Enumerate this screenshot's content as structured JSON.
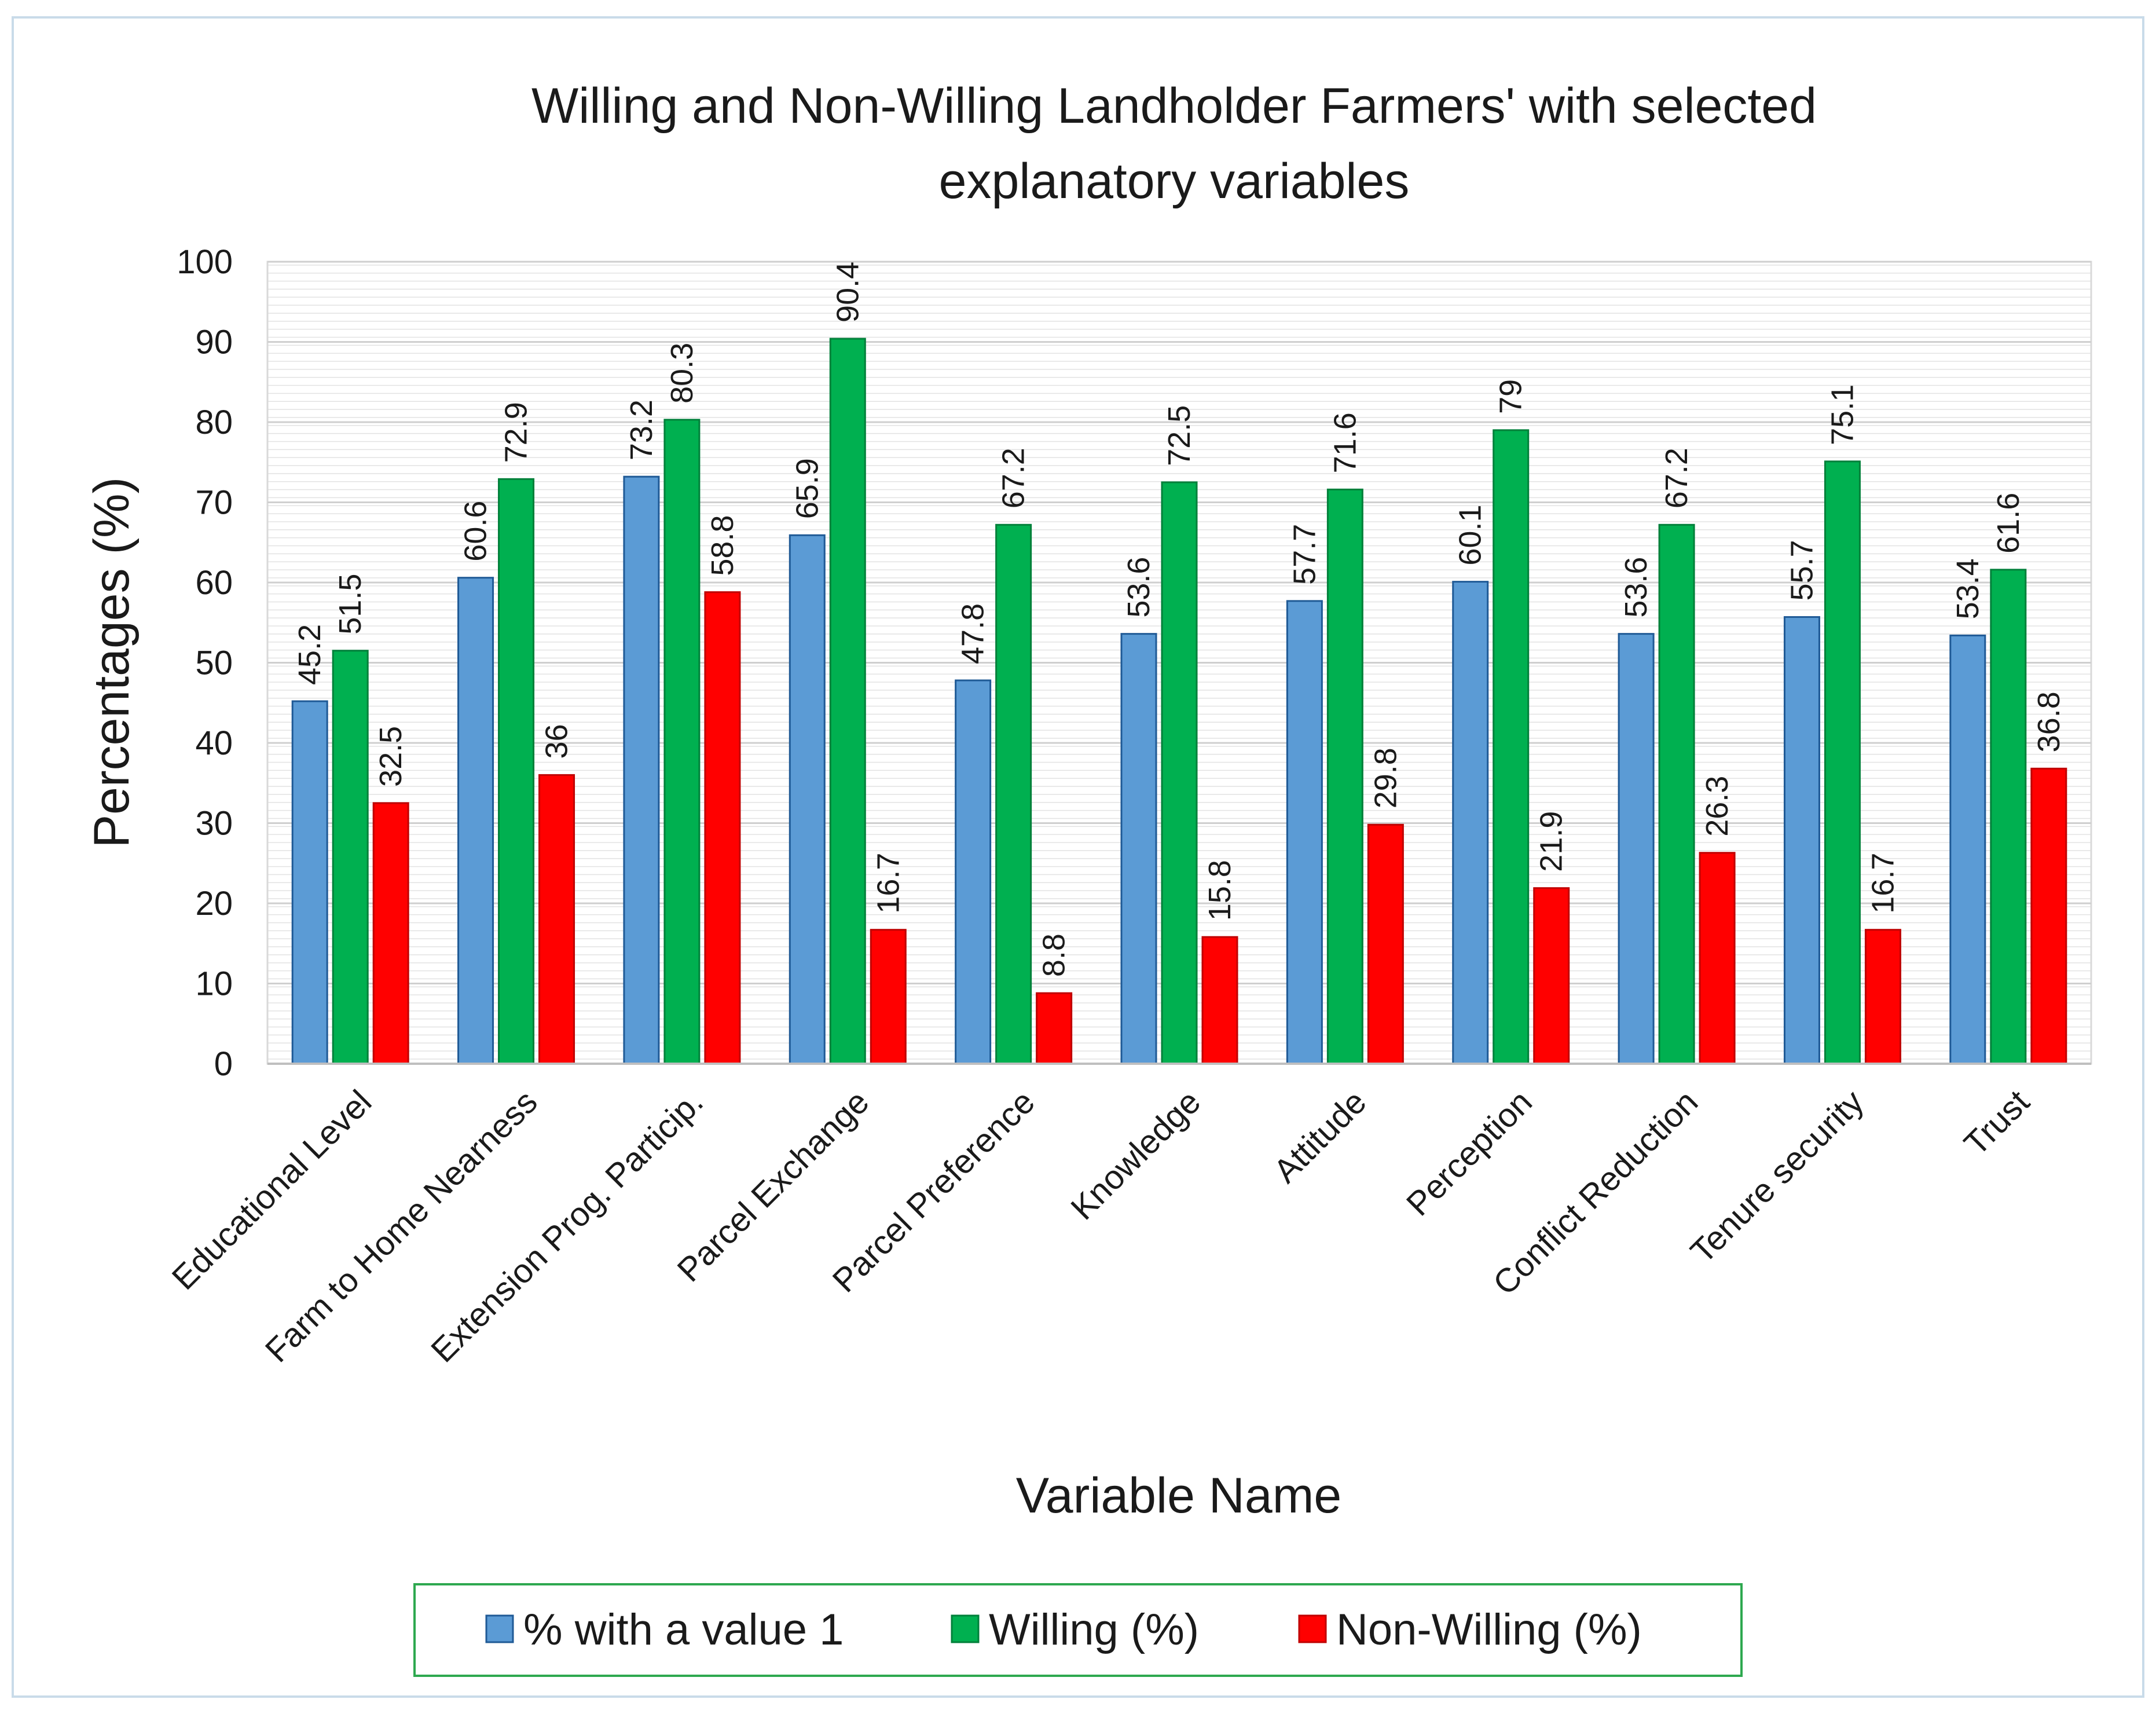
{
  "chart_data": {
    "type": "bar",
    "title_lines": [
      "Willing and Non-Willing Landholder Farmers' with selected",
      "explanatory variables"
    ],
    "xlabel": "Variable Name",
    "ylabel": "Percentages  (%)",
    "ylim": [
      0,
      100
    ],
    "yticks": [
      0,
      10,
      20,
      30,
      40,
      50,
      60,
      70,
      80,
      90,
      100
    ],
    "grid": true,
    "legend_position": "bottom",
    "categories": [
      "Educational Level",
      "Farm to Home Nearness",
      "Extension Prog. Particip.",
      "Parcel Exchange",
      "Parcel Preference",
      "Knowledge",
      "Attitude",
      "Perception",
      "Conflict Reduction",
      "Tenure security",
      "Trust"
    ],
    "series": [
      {
        "name": "% with a value 1",
        "color": "#5b9bd5",
        "border": "#1f5a96",
        "values": [
          45.2,
          60.6,
          73.2,
          65.9,
          47.8,
          53.6,
          57.7,
          60.1,
          53.6,
          55.7,
          53.4
        ]
      },
      {
        "name": "Willing (%)",
        "color": "#00b050",
        "border": "#00803a",
        "values": [
          51.5,
          72.9,
          80.3,
          90.4,
          67.2,
          72.5,
          71.6,
          79,
          67.2,
          75.1,
          61.6
        ]
      },
      {
        "name": "Non-Willing (%)",
        "color": "#ff0000",
        "border": "#c00000",
        "values": [
          32.5,
          36,
          58.8,
          16.7,
          8.8,
          15.8,
          29.8,
          21.9,
          26.3,
          16.7,
          36.8
        ]
      }
    ]
  }
}
